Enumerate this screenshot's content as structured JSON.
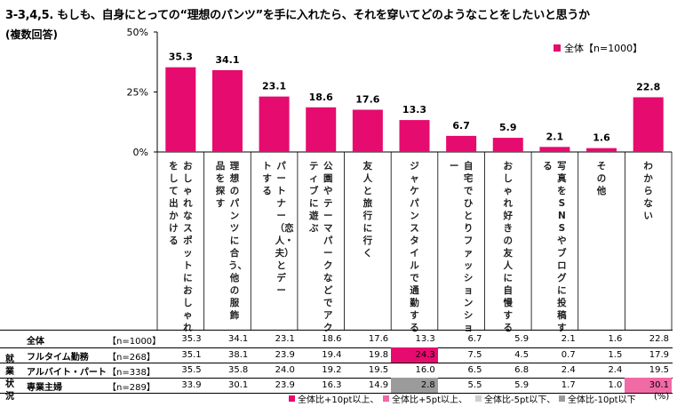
{
  "title": "3-3,4,5. もしも、自身にとっての“理想のパンツ”を手に入れたら、それを穿いてどのようなことをしたいと思うか",
  "subtitle": "(複数回答)",
  "legend": {
    "label": "全体【n=1000】",
    "color": "#e60b6e"
  },
  "chart_data": {
    "type": "bar",
    "categories": [
      "おしゃれなスポットにおしゃれをして出かける",
      "理想のパンツに合う、他の服飾品を探す",
      "パートナー（恋人・夫）とデートする",
      "公園やテーマパークなどでアクティブに遊ぶ",
      "友人と旅行に行く",
      "ジャケパンスタイルで通勤する",
      "自宅でひとりファッションショー",
      "おしゃれ好きの友人に自慢する",
      "写真をSNSやブログに投稿する",
      "その他",
      "わからない"
    ],
    "series": [
      {
        "name": "全体【n=1000】",
        "values": [
          35.3,
          34.1,
          23.1,
          18.6,
          17.6,
          13.3,
          6.7,
          5.9,
          2.1,
          1.6,
          22.8
        ]
      }
    ],
    "ylim": [
      0,
      50
    ],
    "yticks": [
      "0%",
      "25%",
      "50%"
    ],
    "grid": false,
    "legend_position": "top-right"
  },
  "table": {
    "side_label": "就業状況",
    "rows": [
      {
        "label": "全体",
        "n": "【n=1000】",
        "values": [
          "35.3",
          "34.1",
          "23.1",
          "18.6",
          "17.6",
          "13.3",
          "6.7",
          "5.9",
          "2.1",
          "1.6",
          "22.8"
        ],
        "hl": [
          0,
          0,
          0,
          0,
          0,
          0,
          0,
          0,
          0,
          0,
          0
        ]
      },
      {
        "label": "フルタイム勤務",
        "n": "【n=268】",
        "values": [
          "35.1",
          "38.1",
          "23.9",
          "19.4",
          "19.8",
          "24.3",
          "7.5",
          "4.5",
          "0.7",
          "1.5",
          "17.9"
        ],
        "hl": [
          0,
          0,
          0,
          0,
          0,
          1,
          0,
          0,
          0,
          0,
          0
        ]
      },
      {
        "label": "アルバイト・パート",
        "n": "【n=338】",
        "values": [
          "35.5",
          "35.8",
          "24.0",
          "19.2",
          "19.5",
          "16.0",
          "6.5",
          "6.8",
          "2.4",
          "2.4",
          "19.5"
        ],
        "hl": [
          0,
          0,
          0,
          0,
          0,
          0,
          0,
          0,
          0,
          0,
          0
        ]
      },
      {
        "label": "専業主婦",
        "n": "【n=289】",
        "values": [
          "33.9",
          "30.1",
          "23.9",
          "16.3",
          "14.9",
          "2.8",
          "5.5",
          "5.9",
          "1.7",
          "1.0",
          "30.1"
        ],
        "hl": [
          0,
          0,
          0,
          0,
          0,
          4,
          0,
          0,
          0,
          0,
          2
        ]
      }
    ]
  },
  "footnote": {
    "items": [
      {
        "label": "全体比+10pt以上、",
        "color": "#e60b6e"
      },
      {
        "label": "全体比+5pt以上、",
        "color": "#f06aa4"
      },
      {
        "label": "全体比-5pt以下、",
        "color": "#cfcfcf"
      },
      {
        "label": "全体比-10pt以下",
        "color": "#9b9b9b"
      }
    ],
    "unit": "(%)"
  }
}
